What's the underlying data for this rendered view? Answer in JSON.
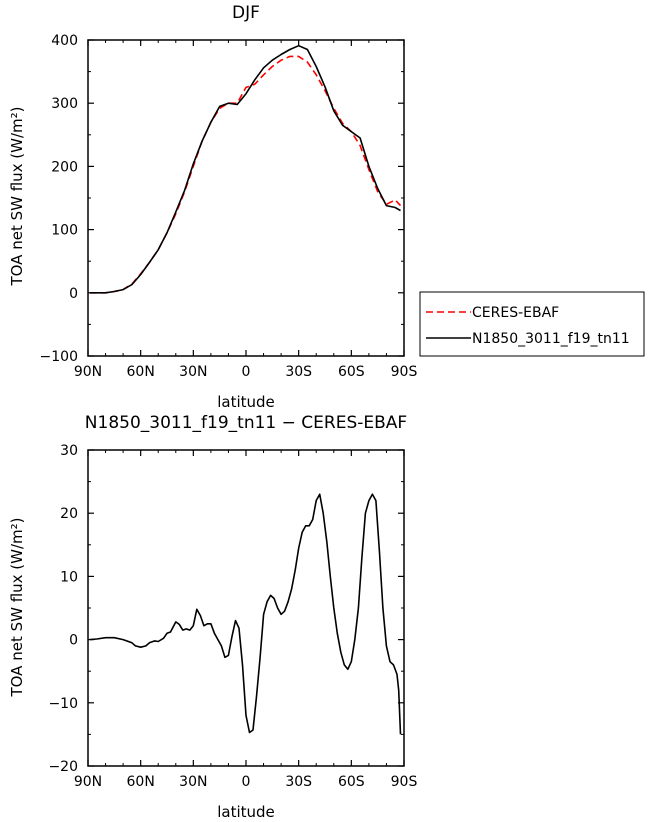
{
  "chart_data": [
    {
      "type": "line",
      "title": "DJF",
      "xlabel": "latitude",
      "ylabel": "TOA net SW flux (W/m²)",
      "xlim": [
        90,
        -90
      ],
      "ylim": [
        -100,
        400
      ],
      "xticks": [
        90,
        60,
        30,
        0,
        -30,
        -60,
        -90
      ],
      "xtick_labels": [
        "90N",
        "60N",
        "30N",
        "0",
        "30S",
        "60S",
        "90S"
      ],
      "yticks": [
        -100,
        0,
        100,
        200,
        300,
        400
      ],
      "ytick_labels": [
        "−100",
        "0",
        "100",
        "200",
        "300",
        "400"
      ],
      "legend": {
        "placement": "right",
        "entries": [
          {
            "label": "CERES-EBAF",
            "series": 0
          },
          {
            "label": "N1850_3011_f19_tn11",
            "series": 1
          }
        ]
      },
      "series": [
        {
          "name": "CERES-EBAF",
          "color": "#ff0000",
          "dash": "dashed",
          "x": [
            89,
            85,
            80,
            75,
            70,
            65,
            60,
            55,
            50,
            45,
            40,
            35,
            30,
            25,
            20,
            15,
            10,
            5,
            0,
            -5,
            -10,
            -15,
            -20,
            -25,
            -30,
            -35,
            -40,
            -45,
            -50,
            -55,
            -60,
            -65,
            -70,
            -75,
            -80,
            -85,
            -88
          ],
          "y": [
            0,
            0,
            0,
            2,
            5,
            14,
            30,
            48,
            68,
            95,
            125,
            160,
            200,
            240,
            270,
            292,
            300,
            300,
            325,
            330,
            345,
            358,
            368,
            374,
            374,
            365,
            345,
            320,
            292,
            268,
            255,
            233,
            195,
            160,
            140,
            147,
            138
          ]
        },
        {
          "name": "N1850_3011_f19_tn11",
          "color": "#000000",
          "dash": "solid",
          "x": [
            89,
            85,
            80,
            75,
            70,
            65,
            60,
            55,
            50,
            45,
            40,
            35,
            30,
            25,
            20,
            15,
            10,
            5,
            0,
            -5,
            -10,
            -15,
            -20,
            -25,
            -30,
            -35,
            -40,
            -45,
            -50,
            -55,
            -60,
            -65,
            -70,
            -75,
            -80,
            -85,
            -88
          ],
          "y": [
            0,
            0,
            0,
            2,
            5,
            13,
            29,
            48,
            68,
            95,
            128,
            162,
            204,
            240,
            270,
            295,
            300,
            298,
            315,
            337,
            356,
            368,
            377,
            385,
            391,
            385,
            358,
            326,
            288,
            265,
            255,
            245,
            200,
            165,
            138,
            135,
            130
          ]
        }
      ]
    },
    {
      "type": "line",
      "title": "N1850_3011_f19_tn11 − CERES-EBAF",
      "xlabel": "latitude",
      "ylabel": "TOA net SW flux (W/m²)",
      "xlim": [
        90,
        -90
      ],
      "ylim": [
        -20,
        30
      ],
      "xticks": [
        90,
        60,
        30,
        0,
        -30,
        -60,
        -90
      ],
      "xtick_labels": [
        "90N",
        "60N",
        "30N",
        "0",
        "30S",
        "60S",
        "90S"
      ],
      "yticks": [
        -20,
        -10,
        0,
        10,
        20,
        30
      ],
      "ytick_labels": [
        "−20",
        "−10",
        "0",
        "10",
        "20",
        "30"
      ],
      "series": [
        {
          "color": "#000000",
          "dash": "solid",
          "x": [
            89,
            85,
            80,
            75,
            70,
            65,
            63,
            60,
            57,
            55,
            52,
            50,
            47,
            45,
            43,
            40,
            38,
            36,
            34,
            32,
            30,
            28,
            26,
            24,
            22,
            20,
            18,
            16,
            14,
            12,
            10,
            8,
            6,
            4,
            2,
            0,
            -2,
            -4,
            -6,
            -8,
            -10,
            -12,
            -14,
            -16,
            -18,
            -20,
            -22,
            -24,
            -26,
            -28,
            -30,
            -32,
            -34,
            -36,
            -38,
            -40,
            -42,
            -44,
            -46,
            -48,
            -50,
            -52,
            -54,
            -56,
            -58,
            -60,
            -62,
            -64,
            -66,
            -68,
            -70,
            -72,
            -74,
            -76,
            -78,
            -80,
            -82,
            -84,
            -86,
            -87,
            -88
          ],
          "y": [
            0,
            0.1,
            0.3,
            0.3,
            0,
            -0.5,
            -1,
            -1.2,
            -1,
            -0.5,
            -0.2,
            -0.3,
            0.2,
            1,
            1.2,
            2.8,
            2.4,
            1.5,
            1.7,
            1.5,
            2.2,
            4.8,
            3.8,
            2.2,
            2.5,
            2.5,
            1,
            0,
            -1,
            -2.8,
            -2.5,
            0.5,
            3,
            1.8,
            -4,
            -12,
            -14.7,
            -14.3,
            -9,
            -3,
            4,
            6,
            7,
            6.5,
            5,
            4,
            4.5,
            6,
            8,
            11,
            14.5,
            17,
            18,
            18,
            19,
            22,
            23,
            20,
            15.5,
            10,
            5,
            1,
            -2,
            -4,
            -4.7,
            -3.5,
            0,
            5,
            13,
            20,
            22,
            23,
            22,
            14,
            5,
            -1,
            -3.5,
            -4,
            -5.5,
            -8,
            -15
          ]
        }
      ]
    }
  ]
}
